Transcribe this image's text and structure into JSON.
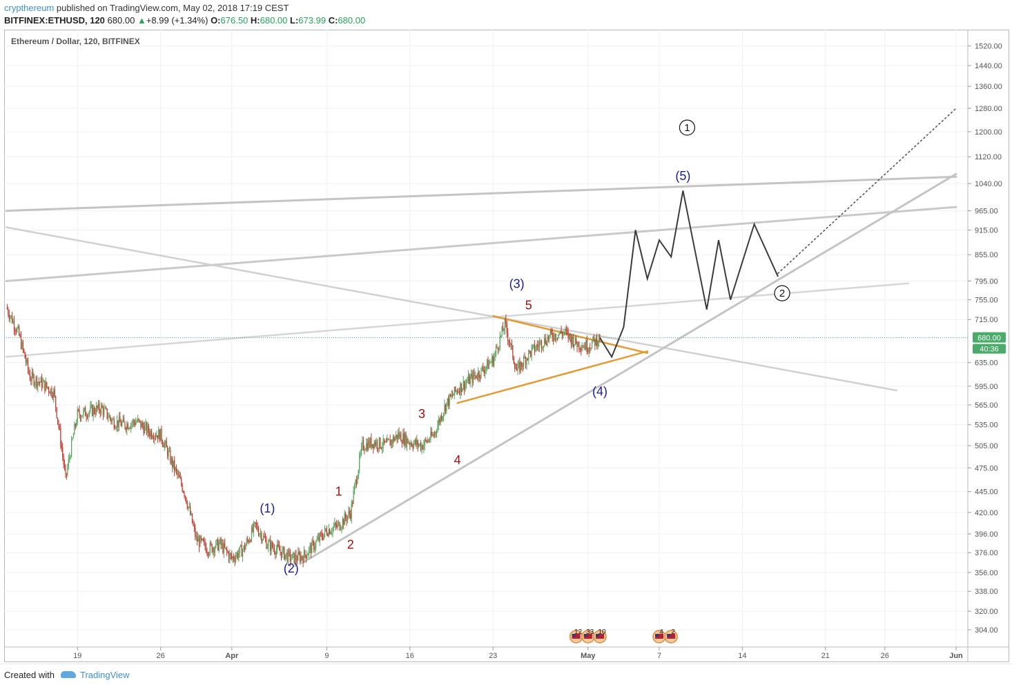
{
  "header": {
    "user": "crypthereum",
    "published_text": " published on TradingView.com, May 02, 2018 17:19 CEST",
    "symbol": "BITFINEX:ETHUSD, 120",
    "price": "680.00",
    "change_arrow": "▲",
    "change": "+8.99 (+1.34%)",
    "o_label": "O:",
    "o_value": "676.50",
    "h_label": "H:",
    "h_value": "680.00",
    "l_label": "L:",
    "l_value": "673.99",
    "c_label": "C:",
    "c_value": "680.00"
  },
  "legend": {
    "title": "Ethereum / Dollar, 120, BITFINEX"
  },
  "footer": {
    "created_with": "Created with",
    "brand": "TradingView"
  },
  "chart_data": {
    "type": "line",
    "symbol": "ETHUSD",
    "exchange": "BITFINEX",
    "interval": "120",
    "scale": "log",
    "ylim": [
      296,
      1560
    ],
    "x_ticks": [
      "19",
      "26",
      "Apr",
      "9",
      "16",
      "23",
      "May",
      "7",
      "14",
      "21",
      "26",
      "Jun"
    ],
    "y_ticks": [
      "1520.00",
      "1440.00",
      "1360.00",
      "1280.00",
      "1200.00",
      "1120.00",
      "1040.00",
      "965.00",
      "915.00",
      "855.00",
      "795.00",
      "755.00",
      "715.00",
      "635.00",
      "595.00",
      "565.00",
      "535.00",
      "505.00",
      "475.00",
      "445.00",
      "420.00",
      "396.00",
      "376.00",
      "356.00",
      "338.00",
      "320.00",
      "304.00"
    ],
    "last_price": "680.00",
    "countdown": "40:36",
    "grid": true,
    "colors": {
      "price_tag": "#4aab6a",
      "projection": "#333333",
      "triangle": "#e69a32",
      "trendline": "#c0c0c0",
      "wave_blue": "#1a1a9a",
      "wave_red": "#a01010"
    },
    "price_path": [
      [
        "Mar 13",
        740
      ],
      [
        "Mar 14",
        690
      ],
      [
        "Mar 15",
        610
      ],
      [
        "Mar 16",
        600
      ],
      [
        "Mar 17",
        585
      ],
      [
        "Mar 18",
        460
      ],
      [
        "Mar 19",
        550
      ],
      [
        "Mar 20",
        555
      ],
      [
        "Mar 21",
        560
      ],
      [
        "Mar 22",
        540
      ],
      [
        "Mar 23",
        535
      ],
      [
        "Mar 24",
        540
      ],
      [
        "Mar 25",
        525
      ],
      [
        "Mar 26",
        520
      ],
      [
        "Mar 27",
        480
      ],
      [
        "Mar 28",
        445
      ],
      [
        "Mar 29",
        390
      ],
      [
        "Mar 30",
        380
      ],
      [
        "Mar 31",
        385
      ],
      [
        "Apr 1",
        370
      ],
      [
        "Apr 2",
        380
      ],
      [
        "Apr 3",
        405
      ],
      [
        "Apr 4",
        385
      ],
      [
        "Apr 5",
        378
      ],
      [
        "Apr 6",
        370
      ],
      [
        "Apr 7",
        372
      ],
      [
        "Apr 8",
        385
      ],
      [
        "Apr 9",
        400
      ],
      [
        "Apr 10",
        405
      ],
      [
        "Apr 11",
        420
      ],
      [
        "Apr 12",
        505
      ],
      [
        "Apr 13",
        510
      ],
      [
        "Apr 14",
        505
      ],
      [
        "Apr 15",
        520
      ],
      [
        "Apr 16",
        510
      ],
      [
        "Apr 17",
        505
      ],
      [
        "Apr 18",
        520
      ],
      [
        "Apr 19",
        565
      ],
      [
        "Apr 20",
        590
      ],
      [
        "Apr 21",
        605
      ],
      [
        "Apr 22",
        620
      ],
      [
        "Apr 23",
        640
      ],
      [
        "Apr 24",
        705
      ],
      [
        "Apr 25",
        620
      ],
      [
        "Apr 26",
        650
      ],
      [
        "Apr 27",
        670
      ],
      [
        "Apr 28",
        685
      ],
      [
        "Apr 29",
        690
      ],
      [
        "Apr 30",
        670
      ],
      [
        "May 1",
        665
      ],
      [
        "May 2",
        680
      ]
    ],
    "projection_path": [
      [
        "May 2",
        680
      ],
      [
        "May 3",
        645
      ],
      [
        "May 4",
        700
      ],
      [
        "May 5",
        915
      ],
      [
        "May 6",
        800
      ],
      [
        "May 7",
        890
      ],
      [
        "May 8",
        850
      ],
      [
        "May 9",
        1020
      ],
      [
        "May 11",
        735
      ],
      [
        "May 12",
        890
      ],
      [
        "May 13",
        755
      ],
      [
        "May 15",
        930
      ],
      [
        "May 17",
        805
      ]
    ],
    "wave_labels": [
      {
        "text": "(1)",
        "color": "blue",
        "price": 420
      },
      {
        "text": "(2)",
        "color": "blue",
        "price": 356
      },
      {
        "text": "(3)",
        "color": "blue",
        "price": 780
      },
      {
        "text": "(4)",
        "color": "blue",
        "price": 580
      },
      {
        "text": "(5)",
        "color": "blue",
        "price": 1050
      },
      {
        "text": "1",
        "color": "red",
        "price": 440
      },
      {
        "text": "2",
        "color": "red",
        "price": 380
      },
      {
        "text": "3",
        "color": "red",
        "price": 545
      },
      {
        "text": "4",
        "color": "red",
        "price": 480
      },
      {
        "text": "5",
        "color": "red",
        "price": 735
      },
      {
        "text": "1",
        "color": "circled",
        "price": 1200
      },
      {
        "text": "2",
        "color": "circled",
        "price": 760
      }
    ],
    "events": [
      {
        "text": "12"
      },
      {
        "text": "33"
      },
      {
        "text": "10"
      },
      {
        "text": "4"
      },
      {
        "text": "2"
      }
    ]
  }
}
